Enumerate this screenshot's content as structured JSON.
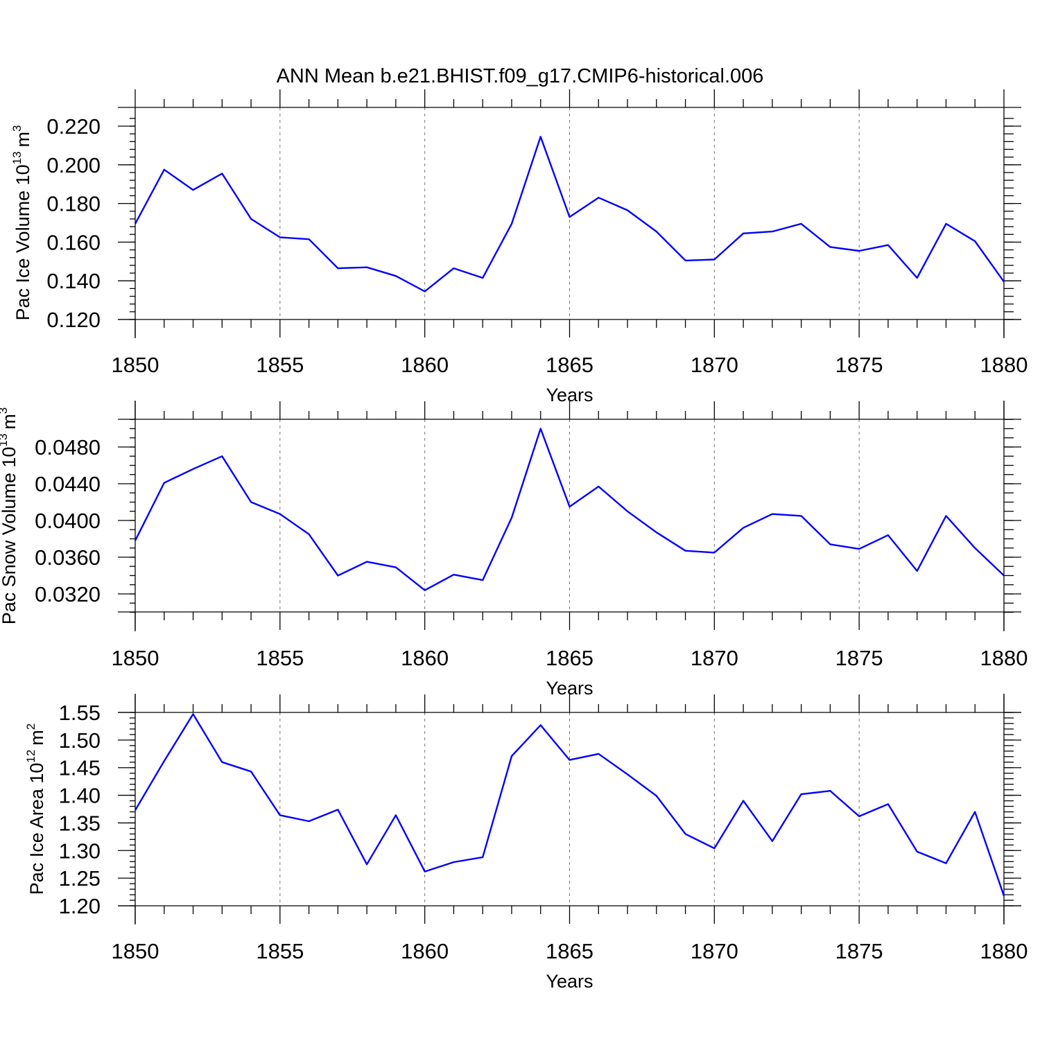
{
  "figure": {
    "title": "ANN Mean b.e21.BHIST.f09_g17.CMIP6-historical.006",
    "line_color": "#0000ff"
  },
  "chart_data": [
    {
      "type": "line",
      "ylabel_base": "Pac Ice Volume 10",
      "ylabel_exp": "13",
      "ylabel_unit": "m",
      "ylabel_unit_exp": "3",
      "xlabel": "Years",
      "xlim": [
        1850,
        1880
      ],
      "ylim": [
        0.12,
        0.225
      ],
      "yticks": [
        0.12,
        0.14,
        0.16,
        0.18,
        0.2,
        0.22
      ],
      "ytick_labels": [
        "0.120",
        "0.140",
        "0.160",
        "0.180",
        "0.200",
        "0.220"
      ],
      "yminor": 0.004,
      "xticks": [
        1850,
        1855,
        1860,
        1865,
        1870,
        1875,
        1880
      ],
      "xtick_labels": [
        "1850",
        "1855",
        "1860",
        "1865",
        "1870",
        "1875",
        "1880"
      ],
      "x": [
        1850,
        1851,
        1852,
        1853,
        1854,
        1855,
        1856,
        1857,
        1858,
        1859,
        1860,
        1861,
        1862,
        1863,
        1864,
        1865,
        1866,
        1867,
        1868,
        1869,
        1870,
        1871,
        1872,
        1873,
        1874,
        1875,
        1876,
        1877,
        1878,
        1879,
        1880
      ],
      "series": [
        {
          "name": "Pac Ice Volume",
          "values": [
            0.1695,
            0.1975,
            0.187,
            0.1955,
            0.172,
            0.1625,
            0.1615,
            0.1465,
            0.147,
            0.1425,
            0.1345,
            0.1465,
            0.1415,
            0.1695,
            0.2145,
            0.173,
            0.183,
            0.1765,
            0.1655,
            0.1505,
            0.151,
            0.1645,
            0.1655,
            0.1695,
            0.1575,
            0.1555,
            0.1585,
            0.1415,
            0.1695,
            0.1605,
            0.1395
          ]
        }
      ]
    },
    {
      "type": "line",
      "ylabel_base": "Pac Snow Volume 10",
      "ylabel_exp": "13",
      "ylabel_unit": "m",
      "ylabel_unit_exp": "3",
      "xlabel": "Years",
      "xlim": [
        1850,
        1880
      ],
      "ylim": [
        0.03,
        0.051
      ],
      "yticks": [
        0.032,
        0.036,
        0.04,
        0.044,
        0.048
      ],
      "ytick_labels": [
        "0.0320",
        "0.0360",
        "0.0400",
        "0.0440",
        "0.0480"
      ],
      "yminor": 0.001,
      "xticks": [
        1850,
        1855,
        1860,
        1865,
        1870,
        1875,
        1880
      ],
      "xtick_labels": [
        "1850",
        "1855",
        "1860",
        "1865",
        "1870",
        "1875",
        "1880"
      ],
      "x": [
        1850,
        1851,
        1852,
        1853,
        1854,
        1855,
        1856,
        1857,
        1858,
        1859,
        1860,
        1861,
        1862,
        1863,
        1864,
        1865,
        1866,
        1867,
        1868,
        1869,
        1870,
        1871,
        1872,
        1873,
        1874,
        1875,
        1876,
        1877,
        1878,
        1879,
        1880
      ],
      "series": [
        {
          "name": "Pac Snow Volume",
          "values": [
            0.0378,
            0.0441,
            0.0456,
            0.047,
            0.042,
            0.0407,
            0.0385,
            0.034,
            0.0355,
            0.0349,
            0.0324,
            0.0341,
            0.0335,
            0.0403,
            0.05,
            0.0415,
            0.0437,
            0.041,
            0.0387,
            0.0367,
            0.0365,
            0.0392,
            0.0407,
            0.0405,
            0.0374,
            0.0369,
            0.0384,
            0.0345,
            0.0405,
            0.037,
            0.034
          ]
        }
      ]
    },
    {
      "type": "line",
      "ylabel_base": "Pac Ice Area 10",
      "ylabel_exp": "12",
      "ylabel_unit": "m",
      "ylabel_unit_exp": "2",
      "xlabel": "Years",
      "xlim": [
        1850,
        1880
      ],
      "ylim": [
        1.2,
        1.55
      ],
      "yticks": [
        1.2,
        1.25,
        1.3,
        1.35,
        1.4,
        1.45,
        1.5,
        1.55
      ],
      "ytick_labels": [
        "1.20",
        "1.25",
        "1.30",
        "1.35",
        "1.40",
        "1.45",
        "1.50",
        "1.55"
      ],
      "yminor": 0.01,
      "xticks": [
        1850,
        1855,
        1860,
        1865,
        1870,
        1875,
        1880
      ],
      "xtick_labels": [
        "1850",
        "1855",
        "1860",
        "1865",
        "1870",
        "1875",
        "1880"
      ],
      "x": [
        1850,
        1851,
        1852,
        1853,
        1854,
        1855,
        1856,
        1857,
        1858,
        1859,
        1860,
        1861,
        1862,
        1863,
        1864,
        1865,
        1866,
        1867,
        1868,
        1869,
        1870,
        1871,
        1872,
        1873,
        1874,
        1875,
        1876,
        1877,
        1878,
        1879,
        1880
      ],
      "series": [
        {
          "name": "Pac Ice Area",
          "values": [
            1.373,
            1.462,
            1.547,
            1.46,
            1.443,
            1.364,
            1.353,
            1.374,
            1.275,
            1.364,
            1.262,
            1.279,
            1.288,
            1.471,
            1.527,
            1.464,
            1.475,
            1.438,
            1.399,
            1.33,
            1.304,
            1.39,
            1.317,
            1.402,
            1.408,
            1.362,
            1.384,
            1.298,
            1.277,
            1.37,
            1.218
          ]
        }
      ]
    }
  ]
}
